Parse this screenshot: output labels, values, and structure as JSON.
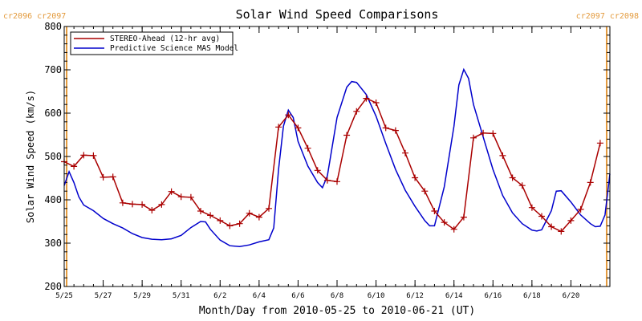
{
  "chart_data": {
    "type": "line",
    "title": "Solar Wind Speed Comparisons",
    "xlabel": "Month/Day from 2010-05-25 to 2010-06-21 (UT)",
    "ylabel": "Solar Wind Speed (km/s)",
    "xlim": [
      "2010-05-25",
      "2010-06-22"
    ],
    "ylim": [
      200,
      800
    ],
    "y_ticks": [
      "200",
      "300",
      "400",
      "500",
      "600",
      "700",
      "800"
    ],
    "x_ticks": [
      {
        "date": "2010-05-25",
        "label": "5/25"
      },
      {
        "date": "2010-05-27",
        "label": "5/27"
      },
      {
        "date": "2010-05-29",
        "label": "5/29"
      },
      {
        "date": "2010-05-31",
        "label": "5/31"
      },
      {
        "date": "2010-06-02",
        "label": "6/2"
      },
      {
        "date": "2010-06-04",
        "label": "6/4"
      },
      {
        "date": "2010-06-06",
        "label": "6/6"
      },
      {
        "date": "2010-06-08",
        "label": "6/8"
      },
      {
        "date": "2010-06-10",
        "label": "6/10"
      },
      {
        "date": "2010-06-12",
        "label": "6/12"
      },
      {
        "date": "2010-06-14",
        "label": "6/14"
      },
      {
        "date": "2010-06-16",
        "label": "6/16"
      },
      {
        "date": "2010-06-18",
        "label": "6/18"
      },
      {
        "date": "2010-06-20",
        "label": "6/20"
      }
    ],
    "carrington_markers": [
      {
        "date": "2010-05-25 03:00",
        "label": "cr2096 cr2097",
        "align": "left"
      },
      {
        "date": "2010-06-21 20:00",
        "label": "cr2097 cr2098",
        "align": "right"
      }
    ],
    "legend_position": "top-left",
    "series": [
      {
        "name": "STEREO-Ahead (12-hr avg)",
        "color": "#aa0000",
        "marker": "plus",
        "points": [
          [
            "2010-05-25 00:00",
            488
          ],
          [
            "2010-05-25 12:00",
            477
          ],
          [
            "2010-05-26 00:00",
            503
          ],
          [
            "2010-05-26 12:00",
            502
          ],
          [
            "2010-05-27 00:00",
            452
          ],
          [
            "2010-05-27 12:00",
            453
          ],
          [
            "2010-05-28 00:00",
            393
          ],
          [
            "2010-05-28 12:00",
            390
          ],
          [
            "2010-05-29 00:00",
            389
          ],
          [
            "2010-05-29 12:00",
            376
          ],
          [
            "2010-05-30 00:00",
            389
          ],
          [
            "2010-05-30 12:00",
            419
          ],
          [
            "2010-05-31 00:00",
            407
          ],
          [
            "2010-05-31 12:00",
            406
          ],
          [
            "2010-06-01 00:00",
            374
          ],
          [
            "2010-06-01 12:00",
            364
          ],
          [
            "2010-06-02 00:00",
            352
          ],
          [
            "2010-06-02 12:00",
            340
          ],
          [
            "2010-06-03 00:00",
            345
          ],
          [
            "2010-06-03 12:00",
            369
          ],
          [
            "2010-06-04 00:00",
            360
          ],
          [
            "2010-06-04 12:00",
            380
          ],
          [
            "2010-06-05 00:00",
            568
          ],
          [
            "2010-06-05 12:00",
            596
          ],
          [
            "2010-06-06 00:00",
            566
          ],
          [
            "2010-06-06 12:00",
            519
          ],
          [
            "2010-06-07 00:00",
            468
          ],
          [
            "2010-06-07 12:00",
            445
          ],
          [
            "2010-06-08 00:00",
            442
          ],
          [
            "2010-06-08 12:00",
            549
          ],
          [
            "2010-06-09 00:00",
            604
          ],
          [
            "2010-06-09 12:00",
            634
          ],
          [
            "2010-06-10 00:00",
            624
          ],
          [
            "2010-06-10 12:00",
            566
          ],
          [
            "2010-06-11 00:00",
            560
          ],
          [
            "2010-06-11 12:00",
            508
          ],
          [
            "2010-06-12 00:00",
            451
          ],
          [
            "2010-06-12 12:00",
            420
          ],
          [
            "2010-06-13 00:00",
            374
          ],
          [
            "2010-06-13 12:00",
            348
          ],
          [
            "2010-06-14 00:00",
            332
          ],
          [
            "2010-06-14 12:00",
            360
          ],
          [
            "2010-06-15 00:00",
            543
          ],
          [
            "2010-06-15 12:00",
            554
          ],
          [
            "2010-06-16 00:00",
            553
          ],
          [
            "2010-06-16 12:00",
            502
          ],
          [
            "2010-06-17 00:00",
            451
          ],
          [
            "2010-06-17 12:00",
            433
          ],
          [
            "2010-06-18 00:00",
            382
          ],
          [
            "2010-06-18 12:00",
            362
          ],
          [
            "2010-06-19 00:00",
            338
          ],
          [
            "2010-06-19 12:00",
            327
          ],
          [
            "2010-06-20 00:00",
            352
          ],
          [
            "2010-06-20 12:00",
            378
          ],
          [
            "2010-06-21 00:00",
            440
          ],
          [
            "2010-06-21 12:00",
            531
          ]
        ]
      },
      {
        "name": "Predictive Science MAS Model",
        "color": "#0000cc",
        "marker": "none",
        "points": [
          [
            "2010-05-25 00:00",
            433
          ],
          [
            "2010-05-25 06:00",
            465
          ],
          [
            "2010-05-25 12:00",
            440
          ],
          [
            "2010-05-25 18:00",
            407
          ],
          [
            "2010-05-26 00:00",
            388
          ],
          [
            "2010-05-26 12:00",
            375
          ],
          [
            "2010-05-27 00:00",
            357
          ],
          [
            "2010-05-27 12:00",
            345
          ],
          [
            "2010-05-28 00:00",
            335
          ],
          [
            "2010-05-28 12:00",
            322
          ],
          [
            "2010-05-29 00:00",
            313
          ],
          [
            "2010-05-29 12:00",
            309
          ],
          [
            "2010-05-30 00:00",
            308
          ],
          [
            "2010-05-30 12:00",
            310
          ],
          [
            "2010-05-31 00:00",
            318
          ],
          [
            "2010-05-31 12:00",
            336
          ],
          [
            "2010-06-01 00:00",
            350
          ],
          [
            "2010-06-01 06:00",
            349
          ],
          [
            "2010-06-01 12:00",
            332
          ],
          [
            "2010-06-02 00:00",
            307
          ],
          [
            "2010-06-02 12:00",
            294
          ],
          [
            "2010-06-03 00:00",
            292
          ],
          [
            "2010-06-03 12:00",
            296
          ],
          [
            "2010-06-04 00:00",
            303
          ],
          [
            "2010-06-04 12:00",
            308
          ],
          [
            "2010-06-04 18:00",
            335
          ],
          [
            "2010-06-05 00:00",
            470
          ],
          [
            "2010-06-05 06:00",
            570
          ],
          [
            "2010-06-05 12:00",
            607
          ],
          [
            "2010-06-05 18:00",
            590
          ],
          [
            "2010-06-06 00:00",
            535
          ],
          [
            "2010-06-06 12:00",
            478
          ],
          [
            "2010-06-07 00:00",
            440
          ],
          [
            "2010-06-07 06:00",
            428
          ],
          [
            "2010-06-07 12:00",
            455
          ],
          [
            "2010-06-08 00:00",
            590
          ],
          [
            "2010-06-08 12:00",
            660
          ],
          [
            "2010-06-08 18:00",
            673
          ],
          [
            "2010-06-09 00:00",
            671
          ],
          [
            "2010-06-09 12:00",
            643
          ],
          [
            "2010-06-10 00:00",
            593
          ],
          [
            "2010-06-10 12:00",
            530
          ],
          [
            "2010-06-11 00:00",
            470
          ],
          [
            "2010-06-11 12:00",
            422
          ],
          [
            "2010-06-12 00:00",
            385
          ],
          [
            "2010-06-12 12:00",
            352
          ],
          [
            "2010-06-12 18:00",
            340
          ],
          [
            "2010-06-13 00:00",
            340
          ],
          [
            "2010-06-13 12:00",
            430
          ],
          [
            "2010-06-14 00:00",
            570
          ],
          [
            "2010-06-14 06:00",
            665
          ],
          [
            "2010-06-14 12:00",
            701
          ],
          [
            "2010-06-14 18:00",
            680
          ],
          [
            "2010-06-15 00:00",
            620
          ],
          [
            "2010-06-15 12:00",
            545
          ],
          [
            "2010-06-16 00:00",
            470
          ],
          [
            "2010-06-16 12:00",
            410
          ],
          [
            "2010-06-17 00:00",
            370
          ],
          [
            "2010-06-17 12:00",
            345
          ],
          [
            "2010-06-18 00:00",
            330
          ],
          [
            "2010-06-18 06:00",
            328
          ],
          [
            "2010-06-18 12:00",
            331
          ],
          [
            "2010-06-19 00:00",
            375
          ],
          [
            "2010-06-19 06:00",
            420
          ],
          [
            "2010-06-19 12:00",
            421
          ],
          [
            "2010-06-20 00:00",
            395
          ],
          [
            "2010-06-20 12:00",
            365
          ],
          [
            "2010-06-21 00:00",
            345
          ],
          [
            "2010-06-21 06:00",
            338
          ],
          [
            "2010-06-21 12:00",
            339
          ],
          [
            "2010-06-21 18:00",
            365
          ],
          [
            "2010-06-22 00:00",
            460
          ]
        ]
      }
    ]
  }
}
